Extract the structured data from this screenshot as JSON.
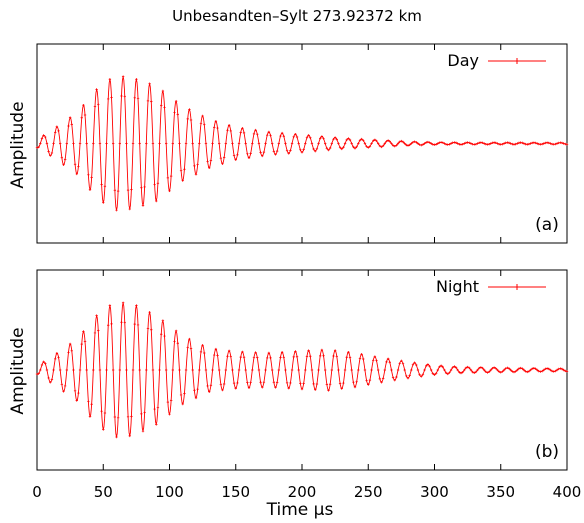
{
  "chart_data": {
    "type": "line",
    "title": "Unbesandten–Sylt 273.92372 km",
    "xlabel": "Time μs",
    "ylabel": "Amplitude",
    "xlim": [
      0,
      400
    ],
    "ylim": [
      -1,
      1
    ],
    "xticks": [
      "0",
      "50",
      "100",
      "150",
      "200",
      "250",
      "300",
      "350",
      "400"
    ],
    "grid": false,
    "color": "#ff0000",
    "panels": [
      {
        "tag": "(a)",
        "legend": "Day",
        "legend_position": "top-right",
        "signal": {
          "period": 10,
          "envelope": [
            [
              0,
              0.06
            ],
            [
              10,
              0.18
            ],
            [
              30,
              0.45
            ],
            [
              45,
              0.8
            ],
            [
              55,
              0.95
            ],
            [
              62,
              1.0
            ],
            [
              75,
              0.95
            ],
            [
              90,
              0.85
            ],
            [
              110,
              0.55
            ],
            [
              130,
              0.36
            ],
            [
              150,
              0.24
            ],
            [
              175,
              0.17
            ],
            [
              200,
              0.13
            ],
            [
              230,
              0.08
            ],
            [
              260,
              0.05
            ],
            [
              280,
              0.03
            ],
            [
              300,
              0.018
            ],
            [
              330,
              0.014
            ],
            [
              400,
              0.012
            ]
          ]
        }
      },
      {
        "tag": "(b)",
        "legend": "Night",
        "legend_position": "top-right",
        "signal": {
          "period": 10,
          "envelope": [
            [
              0,
              0.06
            ],
            [
              10,
              0.18
            ],
            [
              30,
              0.45
            ],
            [
              45,
              0.8
            ],
            [
              55,
              0.95
            ],
            [
              62,
              1.0
            ],
            [
              75,
              0.95
            ],
            [
              90,
              0.8
            ],
            [
              110,
              0.5
            ],
            [
              130,
              0.32
            ],
            [
              150,
              0.27
            ],
            [
              175,
              0.25
            ],
            [
              200,
              0.28
            ],
            [
              220,
              0.3
            ],
            [
              240,
              0.25
            ],
            [
              260,
              0.18
            ],
            [
              280,
              0.12
            ],
            [
              300,
              0.07
            ],
            [
              320,
              0.045
            ],
            [
              360,
              0.03
            ],
            [
              400,
              0.02
            ]
          ]
        }
      }
    ]
  }
}
